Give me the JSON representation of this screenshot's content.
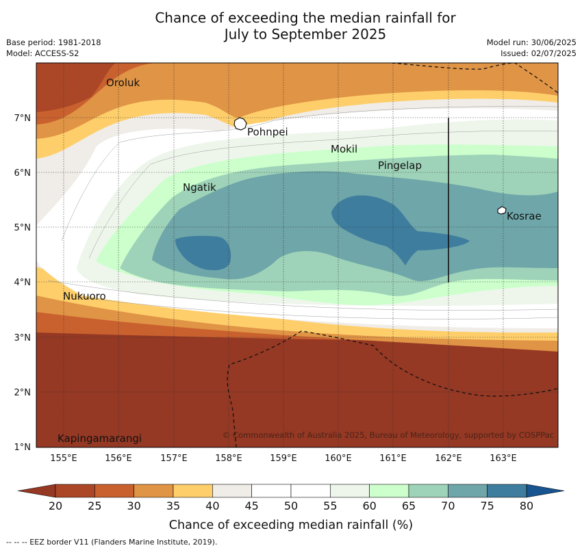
{
  "title_line1": "Chance of exceeding the median rainfall for",
  "title_line2": "July to September 2025",
  "meta_left": [
    "Base period: 1981-2018",
    "Model: ACCESS-S2"
  ],
  "meta_right": [
    "Model run: 30/06/2025",
    "Issued: 02/07/2025"
  ],
  "lon_ticks": [
    "155°E",
    "156°E",
    "157°E",
    "158°E",
    "159°E",
    "160°E",
    "161°E",
    "162°E",
    "163°E"
  ],
  "lat_ticks": [
    "7°N",
    "6°N",
    "5°N",
    "4°N",
    "3°N",
    "2°N",
    "1°N"
  ],
  "places": [
    {
      "name": "Oroluk",
      "lon": 155.72,
      "lat": 7.63
    },
    {
      "name": "Pohnpei",
      "lon": 158.32,
      "lat": 6.85
    },
    {
      "name": "Mokil",
      "lon": 159.78,
      "lat": 6.68
    },
    {
      "name": "Pingelap",
      "lon": 160.7,
      "lat": 6.21
    },
    {
      "name": "Ngatik",
      "lon": 157.16,
      "lat": 5.79
    },
    {
      "name": "Kosrae",
      "lon": 162.98,
      "lat": 5.32
    },
    {
      "name": "Nukuoro",
      "lon": 154.95,
      "lat": 3.85
    },
    {
      "name": "Kapingamarangi",
      "lon": 154.78,
      "lat": 1.07
    }
  ],
  "copyright": "© Commonwealth of Australia 2025, Bureau of Meteorology, supported by COSPPac",
  "colorbar": {
    "ticks": [
      "20",
      "25",
      "30",
      "35",
      "40",
      "45",
      "50",
      "55",
      "60",
      "65",
      "70",
      "75",
      "80"
    ],
    "colors": [
      "#ab4727",
      "#c9612f",
      "#e09445",
      "#fece6a",
      "#f0ece8",
      "#ffffff",
      "#ffffff",
      "#eef6ec",
      "#ccffcc",
      "#9fd3b9",
      "#6fa6a9",
      "#3e7d9e"
    ],
    "under_color": "#953824",
    "over_color": "#175490",
    "label": "Chance of exceeding median rainfall (%)"
  },
  "footer": "--  --  -- EEZ border V11 (Flanders Marine Institute, 2019).",
  "colors": {
    "deep_dry": "#953824",
    "wet": "#3e7d9e",
    "moderate_wet": "#6fa6a9"
  }
}
